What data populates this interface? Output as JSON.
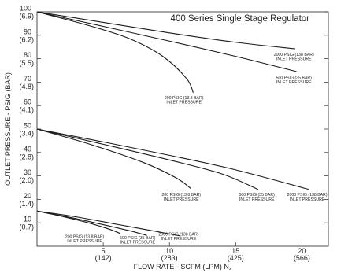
{
  "chart_data": {
    "type": "line",
    "title": "400 Series Single Stage Regulator",
    "title_color": "#b0103a",
    "line_color": "#1a1a1a",
    "xlabel": "FLOW RATE - SCFM (LPM) N₂",
    "ylabel": "OUTLET PRESSURE - PSIG (BAR)",
    "xlim": [
      0,
      22
    ],
    "ylim": [
      0,
      100
    ],
    "x_ticks": [
      {
        "value": 5,
        "label": "5",
        "sublabel": "(142)"
      },
      {
        "value": 10,
        "label": "10",
        "sublabel": "(283)"
      },
      {
        "value": 15,
        "label": "15",
        "sublabel": "(425)"
      },
      {
        "value": 20,
        "label": "20",
        "sublabel": "(566)"
      }
    ],
    "y_ticks": [
      {
        "value": 10,
        "label": "10",
        "sublabel": "(0.7)"
      },
      {
        "value": 20,
        "label": "20",
        "sublabel": "(1.4)"
      },
      {
        "value": 30,
        "label": "30",
        "sublabel": "(2.0)"
      },
      {
        "value": 40,
        "label": "40",
        "sublabel": "(2.8)"
      },
      {
        "value": 50,
        "label": "50",
        "sublabel": "(3.4)"
      },
      {
        "value": 60,
        "label": "60",
        "sublabel": "(4.1)"
      },
      {
        "value": 70,
        "label": "70",
        "sublabel": "(4.8)"
      },
      {
        "value": 80,
        "label": "80",
        "sublabel": "(5.5)"
      },
      {
        "value": 90,
        "label": "90",
        "sublabel": "(6.2)"
      },
      {
        "value": 100,
        "label": "100",
        "sublabel": "(6.9)"
      }
    ],
    "series": [
      {
        "name": "2000 PSIG (138 BAR) INLET PRESSURE",
        "set_pressure": 100,
        "x": [
          0,
          5,
          10,
          15,
          19.5
        ],
        "y": [
          100,
          95.5,
          91,
          87,
          84.2
        ]
      },
      {
        "name": "500 PSIG (35 BAR) INLET PRESSURE",
        "set_pressure": 100,
        "x": [
          0,
          5,
          10,
          15,
          19.6
        ],
        "y": [
          100,
          93.8,
          87.5,
          81,
          74.5
        ]
      },
      {
        "name": "200 PSIG (13.8 BAR) INLET PRESSURE",
        "set_pressure": 100,
        "x": [
          0,
          4,
          7,
          9.5,
          11.3,
          11.8
        ],
        "y": [
          100,
          94,
          88.5,
          81,
          71.5,
          65.5
        ]
      },
      {
        "name": "2000 PSIG (138 BAR) INLET PRESSURE",
        "set_pressure": 50,
        "x": [
          0,
          5,
          10,
          15,
          20.5
        ],
        "y": [
          50,
          44.5,
          38.8,
          32.6,
          24.3
        ]
      },
      {
        "name": "500 PSIG (35 BAR) INLET PRESSURE",
        "set_pressure": 50,
        "x": [
          0,
          5,
          10,
          14,
          16.7
        ],
        "y": [
          50,
          43.5,
          36.8,
          30.8,
          24.2
        ]
      },
      {
        "name": "200 PSIG (13.8 BAR) INLET PRESSURE",
        "set_pressure": 50,
        "x": [
          0,
          4,
          8,
          10.5,
          11.6
        ],
        "y": [
          50,
          43.5,
          35.8,
          29.2,
          24.7
        ]
      },
      {
        "name": "2000 PSIG (138 BAR) INLET PRESSURE",
        "set_pressure": 15,
        "x": [
          0,
          3,
          6,
          9,
          10.8
        ],
        "y": [
          15,
          12.5,
          9.4,
          6.3,
          4.4
        ]
      },
      {
        "name": "500 PSIG (35 BAR) INLET PRESSURE",
        "set_pressure": 15,
        "x": [
          0,
          2.5,
          5,
          7,
          8.3
        ],
        "y": [
          15,
          12.3,
          9.2,
          6.6,
          4.6
        ]
      },
      {
        "name": "200 PSIG (13.8 BAR) INLET PRESSURE",
        "set_pressure": 15,
        "x": [
          0,
          2,
          4,
          5.5,
          6.3
        ],
        "y": [
          15,
          12.6,
          9.8,
          7.2,
          5.4
        ]
      }
    ],
    "curve_labels": [
      {
        "series": 0,
        "line1": "2000 PSIG (138 BAR)",
        "line2": "INLET PRESSURE",
        "x": 19.4,
        "y": 81.2
      },
      {
        "series": 1,
        "line1": "500 PSIG (35 BAR)",
        "line2": "INLET PRESSURE",
        "x": 19.4,
        "y": 71.3
      },
      {
        "series": 2,
        "line1": "200 PSIG (13.8 BAR)",
        "line2": "INLET PRESSURE",
        "x": 11.1,
        "y": 62.8
      },
      {
        "series": 3,
        "line1": "2000 PSIG (138 BAR)",
        "line2": "INLET PRESSURE",
        "x": 20.4,
        "y": 21.4
      },
      {
        "series": 4,
        "line1": "500 PSIG (35 BAR)",
        "line2": "INLET PRESSURE",
        "x": 16.6,
        "y": 21.4
      },
      {
        "series": 5,
        "line1": "200 PSIG (13.8 BAR)",
        "line2": "INLET PRESSURE",
        "x": 10.9,
        "y": 21.4
      },
      {
        "series": 6,
        "line1": "2000 PSIG (138 BAR)",
        "line2": "INLET PRESSURE",
        "x": 10.7,
        "y": 4.6
      },
      {
        "series": 7,
        "line1": "500 PSIG (35 BAR)",
        "line2": "INLET PRESSURE",
        "x": 7.6,
        "y": 3.0
      },
      {
        "series": 8,
        "line1": "200 PSIG (13.8 BAR)",
        "line2": "INLET PRESSURE",
        "x": 3.6,
        "y": 3.6
      }
    ]
  }
}
